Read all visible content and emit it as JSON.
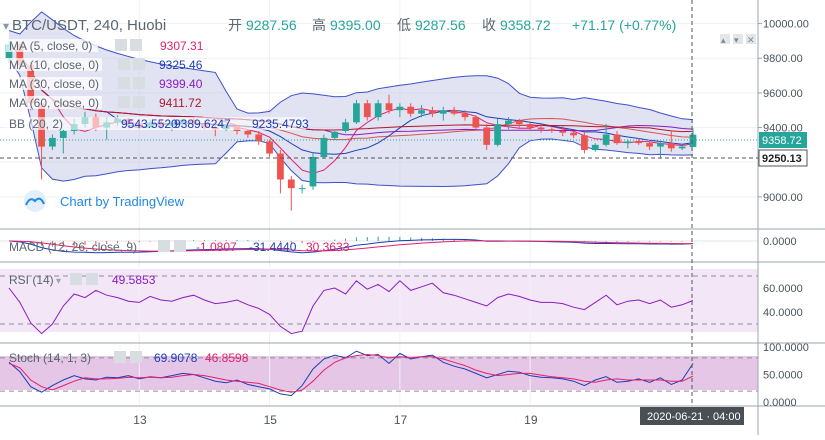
{
  "header": {
    "symbol": "BTC/USDT, 240, Huobi",
    "open_label": "开",
    "open_value": "9287.56",
    "high_label": "高",
    "high_value": "9395.00",
    "low_label": "低",
    "low_value": "9287.56",
    "close_label": "收",
    "close_value": "9358.72",
    "change": "+71.17 (+0.77%)"
  },
  "indicators": [
    {
      "label": "MA (5, close, 0)",
      "value": "9307.31",
      "color": "#e3216b"
    },
    {
      "label": "MA (10, close, 0)",
      "value": "9325.46",
      "color": "#1a3fb5"
    },
    {
      "label": "MA (30, close, 0)",
      "value": "9399.40",
      "color": "#8b1cc0"
    },
    {
      "label": "MA (60, close, 0)",
      "value": "9411.72",
      "color": "#b5172c"
    }
  ],
  "bb": {
    "label": "BB (20, 2)",
    "values": [
      "9543.5520",
      "9389.6247",
      "9235.4793"
    ],
    "color": "#1a3fb5"
  },
  "macd": {
    "label": "MACD (12, 26, close, 9)",
    "values": [
      "-1.0807",
      "-31.4440",
      "30.3633"
    ],
    "colors": [
      "#e3216b",
      "#1a3fb5",
      "#e3216b"
    ]
  },
  "rsi": {
    "label": "RSI (14)",
    "value": "49.5853",
    "color": "#8b1cc0"
  },
  "stoch": {
    "label": "Stoch (14, 1, 3)",
    "values": [
      "69.9078",
      "46.8598"
    ],
    "colors": [
      "#1a3fb5",
      "#e3216b"
    ]
  },
  "watermark": "Chart by TradingView",
  "crosshair_time": "2020-06-21 · 04:00",
  "chart_data": {
    "type": "candlestick",
    "title": "BTC/USDT, 240, Huobi",
    "main_y_ticks": [
      "10000.00",
      "9800.00",
      "9600.00",
      "9400.00",
      "9200.00",
      "9000.00"
    ],
    "main_y_range": [
      8820,
      10090
    ],
    "price_labels": {
      "last": "9358.72",
      "crosshair": "9250.13"
    },
    "x_ticks": [
      "13",
      "15",
      "17",
      "19"
    ],
    "x_tick_index": [
      12,
      24,
      36,
      48
    ],
    "candles": [
      {
        "o": 9800,
        "h": 9900,
        "l": 9770,
        "c": 9880
      },
      {
        "o": 9880,
        "h": 9890,
        "l": 9730,
        "c": 9760
      },
      {
        "o": 9760,
        "h": 9780,
        "l": 9500,
        "c": 9540
      },
      {
        "o": 9540,
        "h": 9560,
        "l": 9100,
        "c": 9290
      },
      {
        "o": 9290,
        "h": 9360,
        "l": 9270,
        "c": 9340
      },
      {
        "o": 9340,
        "h": 9390,
        "l": 9250,
        "c": 9380
      },
      {
        "o": 9380,
        "h": 9450,
        "l": 9360,
        "c": 9420
      },
      {
        "o": 9420,
        "h": 9490,
        "l": 9400,
        "c": 9460
      },
      {
        "o": 9460,
        "h": 9480,
        "l": 9380,
        "c": 9400
      },
      {
        "o": 9400,
        "h": 9460,
        "l": 9330,
        "c": 9430
      },
      {
        "o": 9430,
        "h": 9470,
        "l": 9410,
        "c": 9450
      },
      {
        "o": 9450,
        "h": 9455,
        "l": 9395,
        "c": 9420
      },
      {
        "o": 9420,
        "h": 9440,
        "l": 9390,
        "c": 9400
      },
      {
        "o": 9400,
        "h": 9445,
        "l": 9395,
        "c": 9430
      },
      {
        "o": 9430,
        "h": 9450,
        "l": 9390,
        "c": 9410
      },
      {
        "o": 9410,
        "h": 9440,
        "l": 9380,
        "c": 9425
      },
      {
        "o": 9425,
        "h": 9450,
        "l": 9405,
        "c": 9445
      },
      {
        "o": 9445,
        "h": 9460,
        "l": 9410,
        "c": 9420
      },
      {
        "o": 9420,
        "h": 9440,
        "l": 9390,
        "c": 9400
      },
      {
        "o": 9400,
        "h": 9420,
        "l": 9350,
        "c": 9390
      },
      {
        "o": 9390,
        "h": 9420,
        "l": 9380,
        "c": 9410
      },
      {
        "o": 9410,
        "h": 9415,
        "l": 9360,
        "c": 9380
      },
      {
        "o": 9380,
        "h": 9390,
        "l": 9340,
        "c": 9360
      },
      {
        "o": 9360,
        "h": 9380,
        "l": 9300,
        "c": 9320
      },
      {
        "o": 9320,
        "h": 9330,
        "l": 9230,
        "c": 9250
      },
      {
        "o": 9250,
        "h": 9270,
        "l": 9020,
        "c": 9100
      },
      {
        "o": 9100,
        "h": 9120,
        "l": 8920,
        "c": 9050
      },
      {
        "o": 9050,
        "h": 9070,
        "l": 9020,
        "c": 9050
      },
      {
        "o": 9060,
        "h": 9250,
        "l": 9040,
        "c": 9230
      },
      {
        "o": 9230,
        "h": 9360,
        "l": 9220,
        "c": 9340
      },
      {
        "o": 9340,
        "h": 9380,
        "l": 9330,
        "c": 9375
      },
      {
        "o": 9380,
        "h": 9450,
        "l": 9370,
        "c": 9430
      },
      {
        "o": 9430,
        "h": 9560,
        "l": 9420,
        "c": 9540
      },
      {
        "o": 9540,
        "h": 9560,
        "l": 9440,
        "c": 9460
      },
      {
        "o": 9460,
        "h": 9560,
        "l": 9440,
        "c": 9540
      },
      {
        "o": 9540,
        "h": 9590,
        "l": 9480,
        "c": 9500
      },
      {
        "o": 9500,
        "h": 9540,
        "l": 9460,
        "c": 9520
      },
      {
        "o": 9520,
        "h": 9540,
        "l": 9460,
        "c": 9480
      },
      {
        "o": 9480,
        "h": 9530,
        "l": 9460,
        "c": 9500
      },
      {
        "o": 9500,
        "h": 9520,
        "l": 9460,
        "c": 9480
      },
      {
        "o": 9480,
        "h": 9520,
        "l": 9440,
        "c": 9500
      },
      {
        "o": 9500,
        "h": 9520,
        "l": 9470,
        "c": 9480
      },
      {
        "o": 9480,
        "h": 9500,
        "l": 9440,
        "c": 9460
      },
      {
        "o": 9460,
        "h": 9470,
        "l": 9380,
        "c": 9400
      },
      {
        "o": 9400,
        "h": 9420,
        "l": 9270,
        "c": 9300
      },
      {
        "o": 9300,
        "h": 9450,
        "l": 9290,
        "c": 9420
      },
      {
        "o": 9420,
        "h": 9460,
        "l": 9390,
        "c": 9440
      },
      {
        "o": 9440,
        "h": 9450,
        "l": 9400,
        "c": 9420
      },
      {
        "o": 9420,
        "h": 9430,
        "l": 9380,
        "c": 9400
      },
      {
        "o": 9400,
        "h": 9420,
        "l": 9370,
        "c": 9390
      },
      {
        "o": 9390,
        "h": 9400,
        "l": 9370,
        "c": 9380
      },
      {
        "o": 9380,
        "h": 9410,
        "l": 9350,
        "c": 9370
      },
      {
        "o": 9370,
        "h": 9380,
        "l": 9340,
        "c": 9355
      },
      {
        "o": 9355,
        "h": 9370,
        "l": 9250,
        "c": 9270
      },
      {
        "o": 9270,
        "h": 9310,
        "l": 9260,
        "c": 9300
      },
      {
        "o": 9300,
        "h": 9420,
        "l": 9290,
        "c": 9360
      },
      {
        "o": 9360,
        "h": 9380,
        "l": 9300,
        "c": 9310
      },
      {
        "o": 9310,
        "h": 9330,
        "l": 9280,
        "c": 9320
      },
      {
        "o": 9320,
        "h": 9340,
        "l": 9300,
        "c": 9310
      },
      {
        "o": 9310,
        "h": 9320,
        "l": 9270,
        "c": 9290
      },
      {
        "o": 9290,
        "h": 9320,
        "l": 9220,
        "c": 9310
      },
      {
        "o": 9310,
        "h": 9380,
        "l": 9260,
        "c": 9280
      },
      {
        "o": 9280,
        "h": 9300,
        "l": 9270,
        "c": 9290
      },
      {
        "o": 9287.56,
        "h": 9395,
        "l": 9287.56,
        "c": 9358.72
      }
    ],
    "macd_y_ticks": [
      "0.0000"
    ],
    "rsi_y_ticks": [
      "60.0000",
      "40.0000"
    ],
    "rsi_levels": [
      70,
      30
    ],
    "rsi_range": [
      15,
      80
    ],
    "rsi_series": [
      60,
      48,
      31,
      22,
      30,
      45,
      55,
      52,
      58,
      54,
      52,
      49,
      48,
      53,
      50,
      49,
      52,
      54,
      50,
      47,
      48,
      50,
      46,
      43,
      38,
      28,
      22,
      24,
      45,
      58,
      60,
      55,
      66,
      59,
      63,
      57,
      66,
      58,
      61,
      64,
      56,
      54,
      51,
      48,
      45,
      52,
      55,
      53,
      50,
      48,
      48,
      47,
      44,
      42,
      48,
      54,
      46,
      49,
      50,
      47,
      50,
      44,
      46,
      49.6
    ],
    "stoch_y_ticks": [
      "100.0000",
      "50.0000",
      "0.0000"
    ],
    "stoch_levels": [
      80,
      20
    ],
    "stoch_range": [
      -5,
      105
    ],
    "stoch_k": [
      72,
      55,
      28,
      18,
      30,
      40,
      48,
      42,
      40,
      45,
      44,
      48,
      42,
      46,
      44,
      48,
      52,
      50,
      44,
      38,
      35,
      40,
      32,
      28,
      24,
      15,
      12,
      30,
      60,
      78,
      85,
      80,
      92,
      84,
      86,
      70,
      88,
      78,
      82,
      85,
      72,
      65,
      60,
      52,
      44,
      50,
      56,
      54,
      48,
      45,
      44,
      42,
      38,
      30,
      40,
      46,
      36,
      38,
      42,
      36,
      44,
      32,
      40,
      69.9
    ],
    "stoch_d": [
      70,
      62,
      40,
      28,
      22,
      30,
      38,
      44,
      42,
      42,
      43,
      45,
      44,
      45,
      44,
      45,
      48,
      50,
      48,
      44,
      40,
      38,
      36,
      34,
      28,
      22,
      18,
      22,
      38,
      58,
      72,
      80,
      84,
      86,
      84,
      80,
      82,
      80,
      82,
      82,
      78,
      72,
      66,
      58,
      52,
      48,
      50,
      52,
      52,
      49,
      46,
      44,
      42,
      38,
      36,
      40,
      42,
      40,
      40,
      40,
      40,
      38,
      38,
      46.9
    ]
  }
}
